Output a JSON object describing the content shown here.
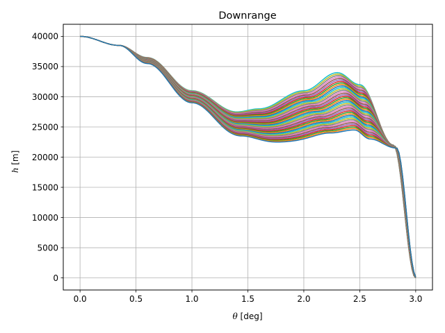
{
  "chart_data": {
    "type": "line",
    "title": "Downrange",
    "xlabel": "θ [deg]",
    "ylabel": "h [m]",
    "xlim": [
      -0.15,
      3.15
    ],
    "ylim": [
      -2000,
      42000
    ],
    "xticks": [
      0.0,
      0.5,
      1.0,
      1.5,
      2.0,
      2.5,
      3.0
    ],
    "xtick_labels": [
      "0.0",
      "0.5",
      "1.0",
      "1.5",
      "2.0",
      "2.5",
      "3.0"
    ],
    "yticks": [
      0,
      5000,
      10000,
      15000,
      20000,
      25000,
      30000,
      35000,
      40000
    ],
    "ytick_labels": [
      "0",
      "5000",
      "10000",
      "15000",
      "20000",
      "25000",
      "30000",
      "35000",
      "40000"
    ],
    "grid": true,
    "legend": false,
    "series_count": 40,
    "series_colors": [
      "#1f77b4",
      "#ff7f0e",
      "#2ca02c",
      "#d62728",
      "#9467bd",
      "#8c564b",
      "#e377c2",
      "#7f7f7f",
      "#bcbd22",
      "#17becf"
    ],
    "series_description_points": {
      "x": [
        0.0,
        0.35,
        0.6,
        1.0,
        1.4,
        1.6,
        2.0,
        2.3,
        2.5,
        2.8,
        3.0
      ],
      "first_series_y": [
        40000,
        38500,
        35500,
        29000,
        23500,
        22500,
        24000,
        24500,
        23000,
        21500,
        0
      ],
      "last_series_y": [
        40000,
        38500,
        36500,
        31000,
        27500,
        28000,
        31000,
        34000,
        32000,
        22000,
        0
      ]
    }
  }
}
